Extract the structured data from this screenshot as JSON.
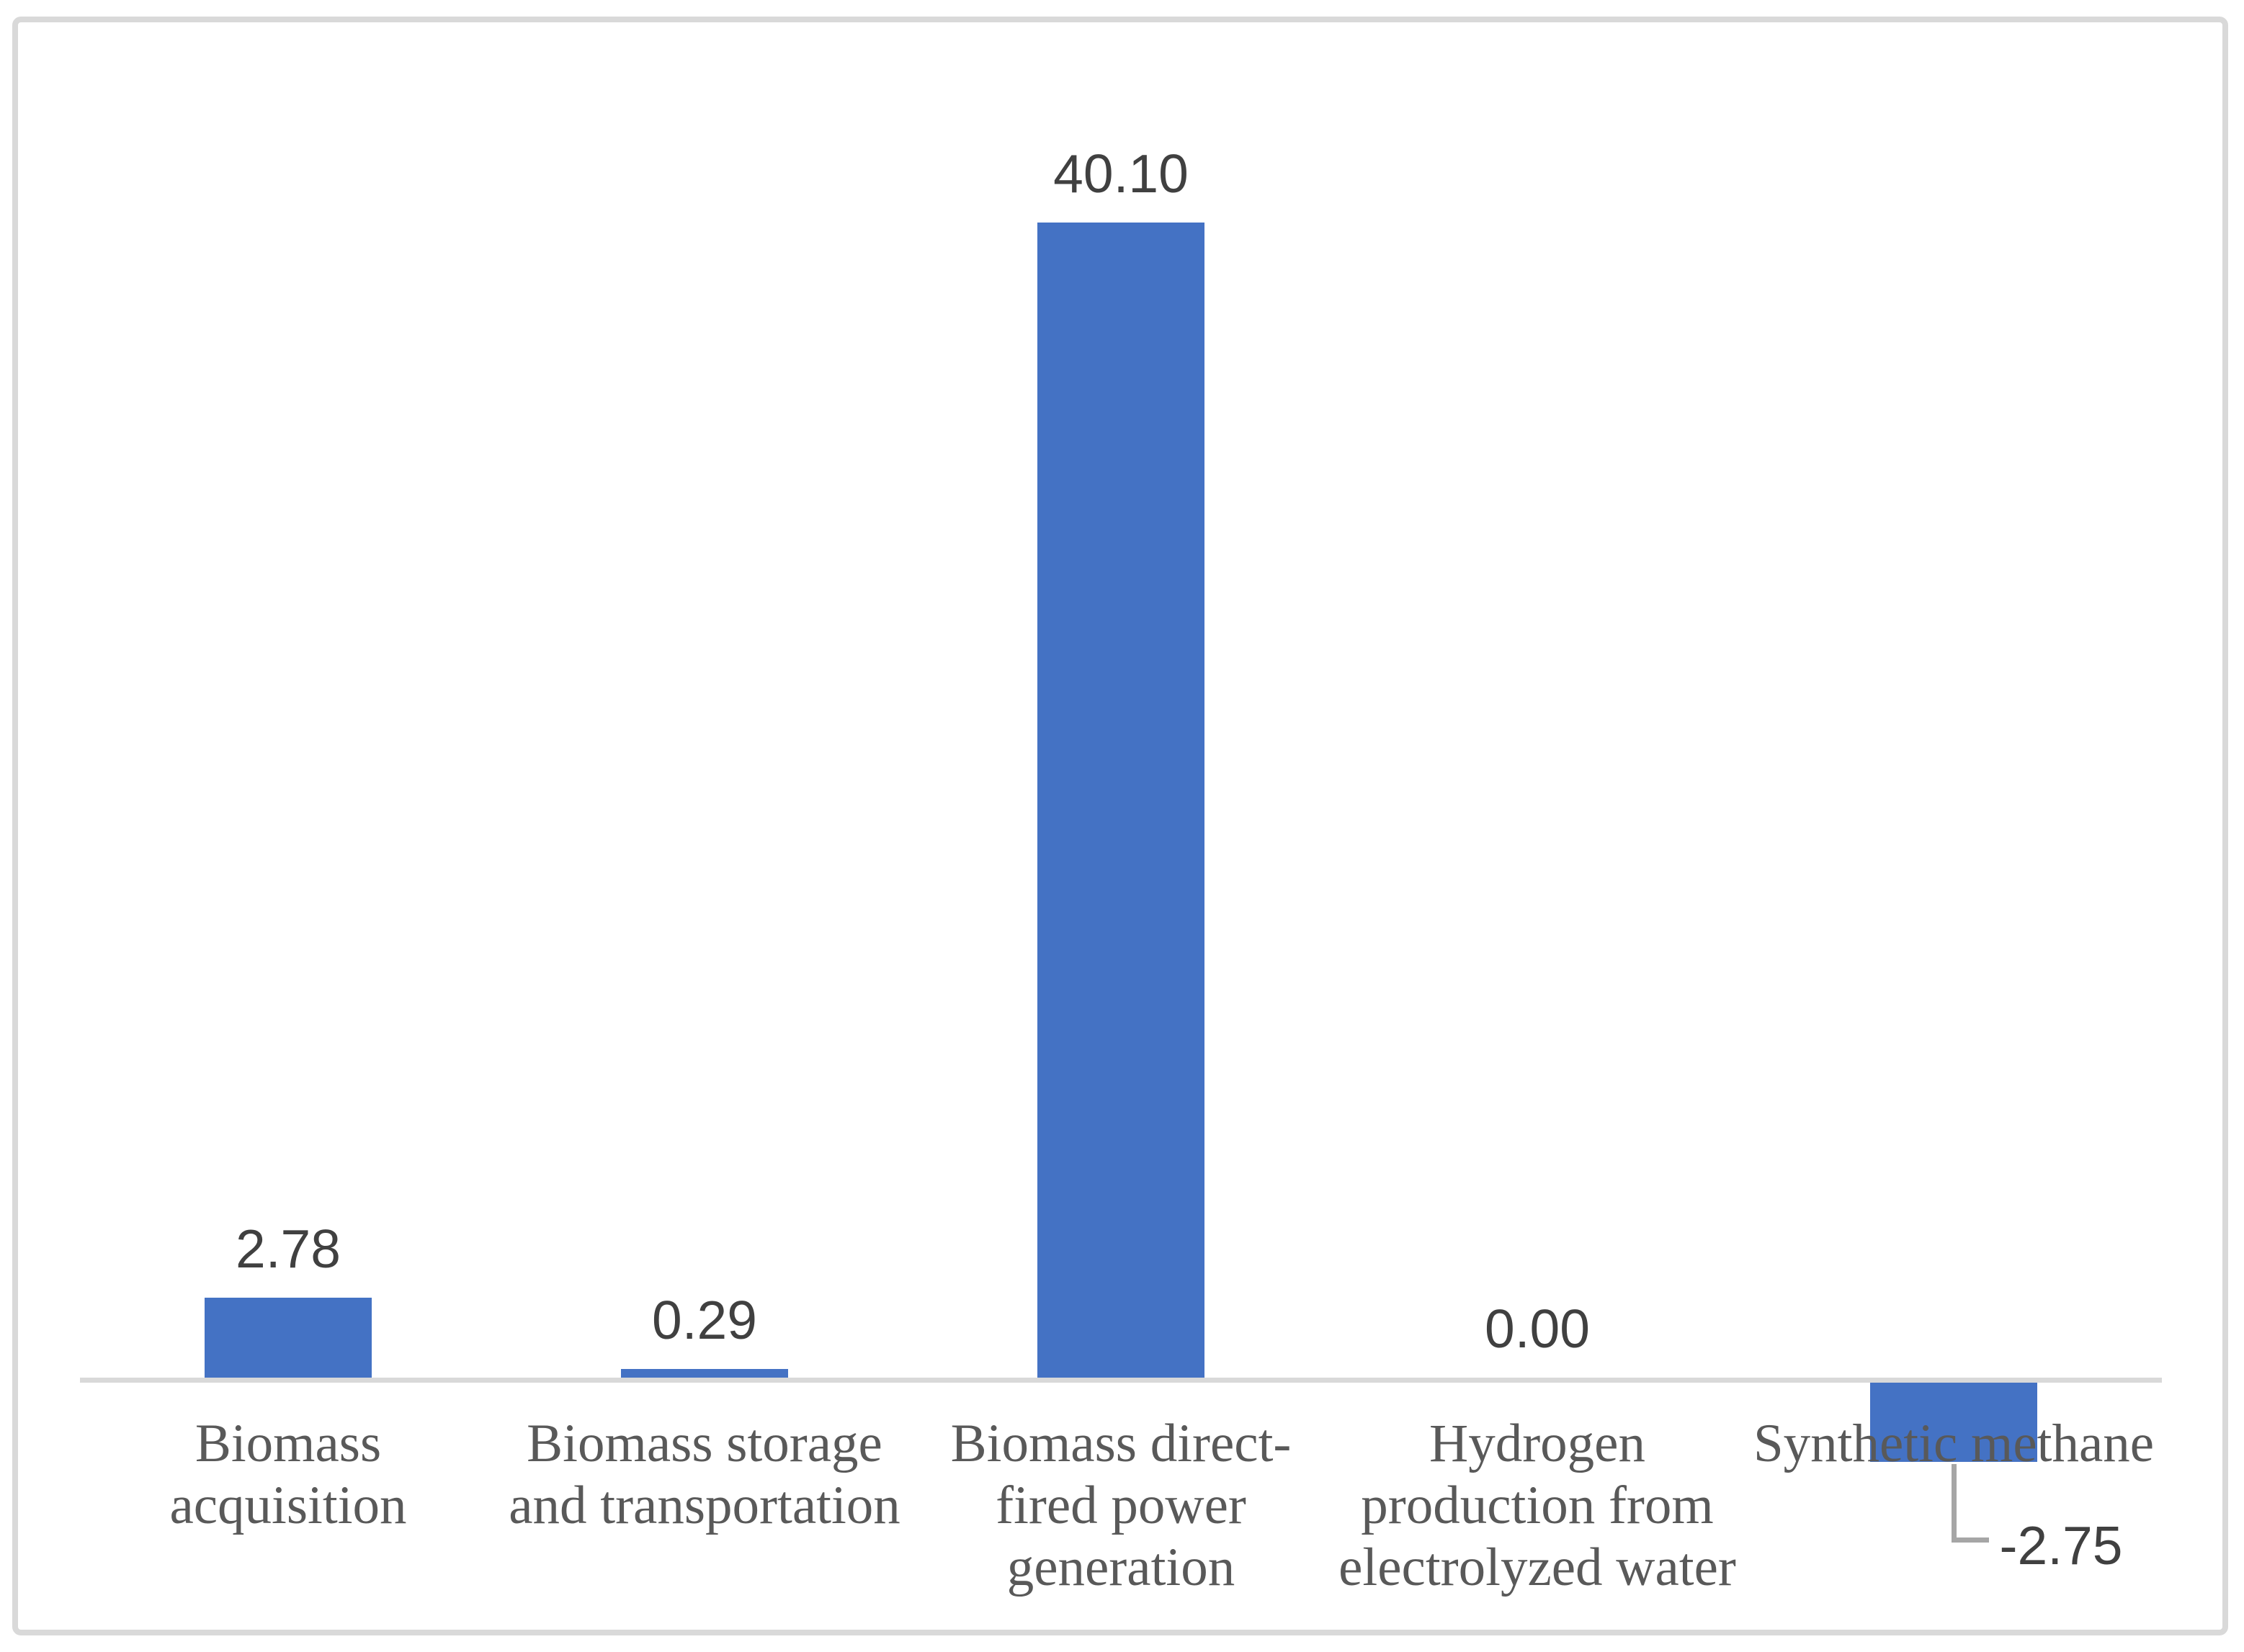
{
  "figure": {
    "background_color": "#ffffff",
    "frame_border_color": "#d9d9d9",
    "axis_line_color": "#d9d9d9",
    "bar_fill_color": "#4472c4",
    "value_label_color": "#404040",
    "category_label_color": "#595959",
    "leader_line_color": "#a6a6a6"
  },
  "chart_data": {
    "type": "bar",
    "title": "",
    "xlabel": "",
    "ylabel": "",
    "categories": [
      "Biomass acquisition",
      "Biomass storage and transportation",
      "Biomass direct-fired power generation",
      "Hydrogen production from electrolyzed water",
      "Synthetic methane"
    ],
    "category_label_lines": [
      [
        "Biomass",
        "acquisition"
      ],
      [
        "Biomass storage",
        "and transportation"
      ],
      [
        "Biomass direct-",
        "fired power",
        "generation"
      ],
      [
        "Hydrogen",
        "production from",
        "electrolyzed water"
      ],
      [
        "Synthetic methane"
      ]
    ],
    "values": [
      2.78,
      0.29,
      40.1,
      0.0,
      -2.75
    ],
    "value_labels": [
      "2.78",
      "0.29",
      "40.10",
      "0.00",
      "-2.75"
    ],
    "series_color": "#4472c4",
    "ylim": [
      -2.75,
      40.1
    ],
    "grid": false,
    "legend": false,
    "data_labels": true,
    "baseline_value": 0,
    "negative_label_has_leader_line": true
  }
}
